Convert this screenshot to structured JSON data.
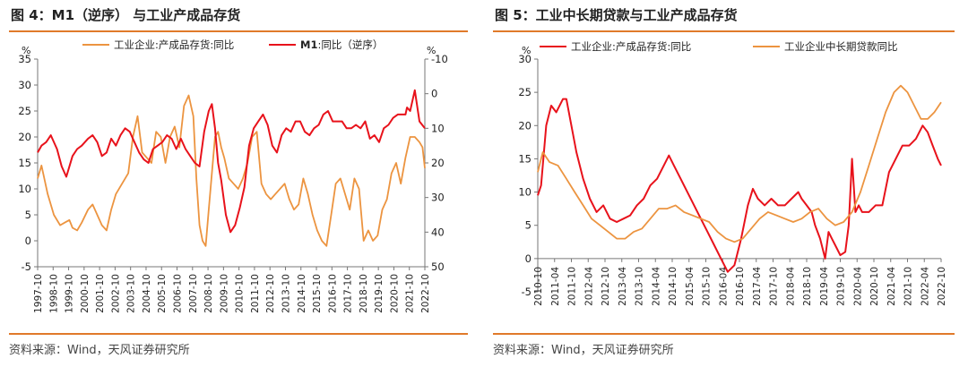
{
  "source_text": "资料来源：Wind，天风证券研究所",
  "colors": {
    "red": "#e8121b",
    "orange": "#ec9440",
    "rule": "#e07a2a"
  },
  "chart_data": [
    {
      "type": "line",
      "title": "图 4：M1（逆序） 与工业产成品存货",
      "left_unit": "%",
      "right_unit": "%",
      "ylim": [
        -5,
        35
      ],
      "y_ticks": [
        "35",
        "30",
        "25",
        "20",
        "15",
        "10",
        "5",
        "0",
        "-5"
      ],
      "y2lim": [
        -10,
        50
      ],
      "y2_ticks": [
        "-10",
        "0",
        "10",
        "20",
        "30",
        "40",
        "50"
      ],
      "y2_inverted": true,
      "x_range": [
        1997.75,
        2022.75
      ],
      "x_ticks": [
        "1997-10",
        "1998-10",
        "1999-10",
        "2000-10",
        "2001-10",
        "2002-10",
        "2003-10",
        "2004-10",
        "2005-10",
        "2006-10",
        "2007-10",
        "2008-10",
        "2009-10",
        "2010-10",
        "2011-10",
        "2012-10",
        "2013-10",
        "2014-10",
        "2015-10",
        "2016-10",
        "2017-10",
        "2018-10",
        "2019-10",
        "2020-10",
        "2021-10",
        "2022-10"
      ],
      "series": [
        {
          "name": "工业企业:产成品存货:同比",
          "axis": "left",
          "color": "orange",
          "x": [
            1997.75,
            1998.0,
            1998.4,
            1998.8,
            1999.2,
            1999.5,
            1999.8,
            2000.0,
            2000.3,
            2000.6,
            2001.0,
            2001.3,
            2001.6,
            2001.9,
            2002.2,
            2002.5,
            2002.8,
            2003.2,
            2003.6,
            2003.9,
            2004.2,
            2004.5,
            2004.8,
            2005.1,
            2005.4,
            2005.7,
            2006.0,
            2006.3,
            2006.6,
            2006.9,
            2007.2,
            2007.5,
            2007.8,
            2008.0,
            2008.2,
            2008.4,
            2008.6,
            2008.8,
            2009.0,
            2009.2,
            2009.4,
            2009.6,
            2009.8,
            2010.1,
            2010.4,
            2010.7,
            2011.0,
            2011.3,
            2011.6,
            2011.9,
            2012.2,
            2012.5,
            2012.8,
            2013.1,
            2013.4,
            2013.7,
            2014.0,
            2014.3,
            2014.6,
            2014.9,
            2015.2,
            2015.5,
            2015.8,
            2016.1,
            2016.4,
            2016.7,
            2017.0,
            2017.3,
            2017.6,
            2017.9,
            2018.2,
            2018.5,
            2018.8,
            2019.1,
            2019.4,
            2019.7,
            2020.0,
            2020.3,
            2020.6,
            2020.9,
            2021.2,
            2021.5,
            2021.8,
            2022.1,
            2022.4,
            2022.6,
            2022.75
          ],
          "values": [
            12,
            14.5,
            9,
            5,
            3,
            3.5,
            4,
            2.5,
            2,
            3.5,
            6,
            7,
            5,
            3,
            2,
            6,
            9,
            11,
            13,
            20,
            24,
            17,
            16,
            15,
            21,
            20,
            15,
            20,
            22,
            18,
            26,
            28,
            24,
            12,
            3,
            0,
            -1,
            6,
            13,
            20,
            21,
            18,
            16,
            12,
            11,
            10,
            12,
            15,
            20,
            21,
            11,
            9,
            8,
            9,
            10,
            11,
            8,
            6,
            7,
            12,
            9,
            5,
            2,
            0,
            -1,
            5,
            11,
            12,
            9,
            6,
            12,
            10,
            0,
            2,
            0,
            1,
            6,
            8,
            13,
            15,
            11,
            16,
            20,
            20,
            19,
            18,
            14
          ]
        },
        {
          "name": "M1:同比（逆序）",
          "axis": "right",
          "color": "red",
          "x": [
            1997.75,
            1998.0,
            1998.3,
            1998.6,
            1999.0,
            1999.3,
            1999.6,
            2000.0,
            2000.3,
            2000.6,
            2001.0,
            2001.3,
            2001.6,
            2001.9,
            2002.2,
            2002.5,
            2002.8,
            2003.1,
            2003.4,
            2003.7,
            2004.0,
            2004.3,
            2004.6,
            2004.9,
            2005.2,
            2005.5,
            2005.8,
            2006.1,
            2006.4,
            2006.7,
            2007.0,
            2007.3,
            2007.6,
            2007.9,
            2008.2,
            2008.5,
            2008.8,
            2009.0,
            2009.2,
            2009.4,
            2009.6,
            2009.9,
            2010.2,
            2010.5,
            2010.8,
            2011.1,
            2011.4,
            2011.7,
            2012.0,
            2012.3,
            2012.6,
            2012.9,
            2013.2,
            2013.5,
            2013.8,
            2014.1,
            2014.4,
            2014.7,
            2015.0,
            2015.3,
            2015.6,
            2015.9,
            2016.2,
            2016.5,
            2016.8,
            2017.1,
            2017.4,
            2017.7,
            2018.0,
            2018.3,
            2018.6,
            2018.9,
            2019.2,
            2019.5,
            2019.8,
            2020.1,
            2020.4,
            2020.7,
            2021.0,
            2021.3,
            2021.5,
            2021.6,
            2021.8,
            2022.1,
            2022.4,
            2022.75
          ],
          "values": [
            17,
            15,
            14,
            12,
            16,
            21,
            24,
            18,
            16,
            15,
            13,
            12,
            14,
            18,
            17,
            13,
            15,
            12,
            10,
            11,
            14,
            17,
            19,
            20,
            16,
            15,
            14,
            12,
            13,
            16,
            13,
            16,
            18,
            20,
            21,
            11,
            5,
            3,
            10,
            20,
            25,
            35,
            40,
            38,
            33,
            27,
            15,
            10,
            8,
            6,
            9,
            15,
            17,
            12,
            10,
            11,
            8,
            8,
            11,
            12,
            10,
            9,
            6,
            5,
            8,
            8,
            8,
            10,
            10,
            9,
            10,
            8,
            13,
            12,
            14,
            10,
            9,
            7,
            6,
            6,
            6,
            4,
            5,
            -1,
            8,
            10
          ]
        }
      ],
      "legend": [
        {
          "text": "工业企业:产成品存货:同比",
          "series": 0
        },
        {
          "text_bold": "M1",
          "text": ":同比（逆序）",
          "series": 1
        }
      ]
    },
    {
      "type": "line",
      "title": "图 5：工业中长期贷款与工业产成品存货",
      "left_unit": "%",
      "ylim": [
        -5,
        30
      ],
      "y_ticks": [
        "30",
        "25",
        "20",
        "15",
        "10",
        "5",
        "0",
        "-5"
      ],
      "x_range": [
        2010.75,
        2022.75
      ],
      "x_ticks": [
        "2010-10",
        "2011-04",
        "2011-10",
        "2012-04",
        "2012-10",
        "2013-04",
        "2013-10",
        "2014-04",
        "2014-10",
        "2015-04",
        "2015-10",
        "2016-04",
        "2016-10",
        "2017-04",
        "2017-10",
        "2018-04",
        "2018-10",
        "2019-04",
        "2019-10",
        "2020-04",
        "2020-10",
        "2021-04",
        "2021-10",
        "2022-04",
        "2022-10"
      ],
      "series": [
        {
          "name": "工业企业:产成品存货:同比",
          "color": "red",
          "x": [
            2010.75,
            2010.85,
            2011.0,
            2011.15,
            2011.3,
            2011.5,
            2011.6,
            2011.75,
            2011.9,
            2012.1,
            2012.3,
            2012.5,
            2012.7,
            2012.9,
            2013.1,
            2013.3,
            2013.5,
            2013.7,
            2013.9,
            2014.1,
            2014.3,
            2014.5,
            2014.65,
            2014.8,
            2015.0,
            2015.2,
            2015.4,
            2015.6,
            2015.8,
            2016.0,
            2016.2,
            2016.4,
            2016.6,
            2016.8,
            2017.0,
            2017.15,
            2017.3,
            2017.5,
            2017.7,
            2017.9,
            2018.1,
            2018.3,
            2018.5,
            2018.6,
            2018.75,
            2018.9,
            2019.0,
            2019.15,
            2019.3,
            2019.4,
            2019.5,
            2019.6,
            2019.75,
            2019.9,
            2020.0,
            2020.1,
            2020.2,
            2020.3,
            2020.4,
            2020.6,
            2020.8,
            2021.0,
            2021.2,
            2021.4,
            2021.6,
            2021.8,
            2022.0,
            2022.2,
            2022.35,
            2022.5,
            2022.65,
            2022.75
          ],
          "values": [
            9.5,
            11,
            20,
            23,
            22,
            24,
            24,
            20,
            16,
            12,
            9,
            7,
            8,
            6,
            5.5,
            6,
            6.5,
            8,
            9,
            11,
            12,
            14,
            15.5,
            14,
            12,
            10,
            8,
            6,
            4,
            2,
            0,
            -2,
            -1,
            3,
            8,
            10.5,
            9,
            8,
            9,
            8,
            8,
            9,
            10,
            9,
            8,
            7,
            5,
            3,
            0,
            4,
            3,
            2,
            0.5,
            1,
            5,
            15,
            7,
            8,
            7,
            7,
            8,
            8,
            13,
            15,
            17,
            17,
            18,
            20,
            19,
            17,
            15,
            14
          ]
        },
        {
          "name": "工业企业中长期贷款同比",
          "color": "orange",
          "x": [
            2010.75,
            2010.9,
            2011.1,
            2011.35,
            2011.6,
            2011.85,
            2012.1,
            2012.35,
            2012.6,
            2012.85,
            2013.1,
            2013.35,
            2013.6,
            2013.85,
            2014.1,
            2014.35,
            2014.6,
            2014.85,
            2015.1,
            2015.35,
            2015.6,
            2015.85,
            2016.1,
            2016.35,
            2016.6,
            2016.85,
            2017.1,
            2017.35,
            2017.6,
            2017.85,
            2018.1,
            2018.35,
            2018.6,
            2018.85,
            2019.1,
            2019.35,
            2019.6,
            2019.85,
            2020.1,
            2020.35,
            2020.6,
            2020.85,
            2021.1,
            2021.35,
            2021.55,
            2021.75,
            2021.95,
            2022.15,
            2022.35,
            2022.55,
            2022.75
          ],
          "values": [
            13,
            16,
            14.5,
            14,
            12,
            10,
            8,
            6,
            5,
            4,
            3,
            3,
            4,
            4.5,
            6,
            7.5,
            7.5,
            8,
            7,
            6.5,
            6,
            5.5,
            4,
            3,
            2.5,
            3,
            4.5,
            6,
            7,
            6.5,
            6,
            5.5,
            6,
            7,
            7.5,
            6,
            5,
            5.5,
            7,
            10,
            14,
            18,
            22,
            25,
            26,
            25,
            23,
            21,
            21,
            22,
            23.5
          ]
        }
      ],
      "legend": [
        {
          "text": "工业企业:产成品存货:同比",
          "series": 0
        },
        {
          "text": "工业企业中长期贷款同比",
          "series": 1
        }
      ]
    }
  ]
}
